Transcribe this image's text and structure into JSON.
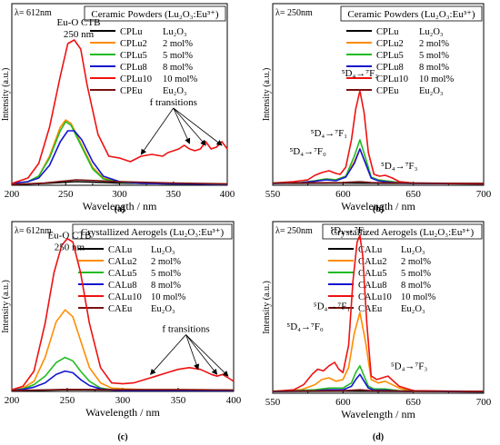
{
  "chart_data": [
    {
      "panel_label": "(a)",
      "type": "line",
      "lambda_label": "λ= 612nm",
      "title": "Ceramic Powders (Lu₂O₃:Eu³⁺)",
      "xlabel": "Wavelength / nm",
      "ylabel": "Intensity (a.u.)",
      "xlim": [
        200,
        400
      ],
      "xticks": [
        200,
        250,
        300,
        350,
        400
      ],
      "ylim": [
        0,
        1
      ],
      "legend_position": "top-right",
      "annotations": [
        {
          "id": "ctb",
          "lines": [
            "Eu-O CTB",
            "250 nm"
          ],
          "x": 262,
          "y": 0.88
        },
        {
          "id": "f-transitions",
          "lines": [
            "f transitions"
          ],
          "x": 350,
          "y": 0.44,
          "arrow_targets": [
            [
              320,
              0.17
            ],
            [
              365,
              0.23
            ],
            [
              380,
              0.22
            ],
            [
              395,
              0.22
            ]
          ]
        }
      ],
      "series": [
        {
          "name": "CPLu",
          "extra": "Lu₂O₃",
          "color": "#000000",
          "x": [
            200,
            230,
            260,
            300,
            350,
            400
          ],
          "y": [
            0.004,
            0.01,
            0.02,
            0.012,
            0.008,
            0.006
          ]
        },
        {
          "name": "CPLu2",
          "extra": "2 mol%",
          "color": "#ff8c00",
          "x": [
            200,
            215,
            225,
            235,
            245,
            250,
            255,
            265,
            275,
            285,
            300,
            320,
            350,
            400
          ],
          "y": [
            0.01,
            0.02,
            0.05,
            0.16,
            0.32,
            0.36,
            0.34,
            0.22,
            0.1,
            0.04,
            0.02,
            0.01,
            0.008,
            0.005
          ]
        },
        {
          "name": "CPLu5",
          "extra": "5 mol%",
          "color": "#22bb22",
          "x": [
            200,
            215,
            225,
            235,
            245,
            250,
            255,
            265,
            275,
            285,
            300,
            320,
            350,
            400
          ],
          "y": [
            0.01,
            0.02,
            0.05,
            0.15,
            0.3,
            0.35,
            0.33,
            0.21,
            0.09,
            0.035,
            0.018,
            0.01,
            0.008,
            0.005
          ]
        },
        {
          "name": "CPLu8",
          "extra": "8 mol%",
          "color": "#1515d0",
          "x": [
            200,
            215,
            225,
            235,
            245,
            252,
            258,
            265,
            275,
            285,
            300,
            320,
            350,
            400
          ],
          "y": [
            0.01,
            0.02,
            0.04,
            0.11,
            0.24,
            0.3,
            0.3,
            0.25,
            0.13,
            0.05,
            0.02,
            0.01,
            0.008,
            0.005
          ]
        },
        {
          "name": "CPLu10",
          "extra": "10 mol%",
          "color": "#ee1111",
          "x": [
            200,
            215,
            225,
            235,
            245,
            252,
            258,
            264,
            270,
            280,
            290,
            300,
            305,
            310,
            320,
            330,
            340,
            345,
            350,
            355,
            360,
            365,
            370,
            375,
            380,
            385,
            390,
            395,
            400
          ],
          "y": [
            0.01,
            0.04,
            0.12,
            0.32,
            0.6,
            0.78,
            0.8,
            0.75,
            0.55,
            0.28,
            0.16,
            0.15,
            0.14,
            0.13,
            0.16,
            0.17,
            0.16,
            0.18,
            0.19,
            0.2,
            0.22,
            0.2,
            0.19,
            0.2,
            0.24,
            0.2,
            0.21,
            0.24,
            0.2
          ]
        },
        {
          "name": "CPEu",
          "extra": "Eu₂O₃",
          "color": "#7a1010",
          "x": [
            200,
            230,
            260,
            300,
            350,
            400
          ],
          "y": [
            0.004,
            0.012,
            0.03,
            0.02,
            0.012,
            0.008
          ]
        }
      ]
    },
    {
      "panel_label": "(b)",
      "type": "line",
      "lambda_label": "λ= 250nm",
      "title": "Ceramic Powders (Lu₂O₃:Eu³⁺)",
      "xlabel": "Wavelength / nm",
      "ylabel": "Intensity (a.u.)",
      "xlim": [
        550,
        700
      ],
      "xticks": [
        550,
        600,
        650,
        700
      ],
      "ylim": [
        0,
        1
      ],
      "legend_position": "top-right",
      "annotations": [
        {
          "id": "5d4-7f2",
          "lines": [
            "⁵D₄→⁷F₂"
          ],
          "x": 612,
          "y": 0.6
        },
        {
          "id": "5d4-7f1",
          "lines": [
            "⁵D₄→⁷F₁"
          ],
          "x": 590,
          "y": 0.27
        },
        {
          "id": "5d4-7f0",
          "lines": [
            "⁵D₄→⁷F₀"
          ],
          "x": 575,
          "y": 0.17
        },
        {
          "id": "5d4-7f3",
          "lines": [
            "⁵D₄→⁷F₃"
          ],
          "x": 640,
          "y": 0.09
        }
      ],
      "series": [
        {
          "name": "CPLu",
          "extra": "Lu₂O₃",
          "color": "#000000",
          "x": [
            550,
            600,
            650,
            700
          ],
          "y": [
            0.01,
            0.012,
            0.01,
            0.01
          ]
        },
        {
          "name": "CPLu2",
          "extra": "2 mol%",
          "color": "#ff8c00",
          "x": [
            550,
            570,
            580,
            588,
            595,
            602,
            608,
            612,
            616,
            620,
            625,
            630,
            640,
            650,
            700
          ],
          "y": [
            0.01,
            0.015,
            0.025,
            0.035,
            0.03,
            0.05,
            0.13,
            0.2,
            0.12,
            0.04,
            0.03,
            0.025,
            0.015,
            0.01,
            0.008
          ]
        },
        {
          "name": "CPLu5",
          "extra": "5 mol%",
          "color": "#22bb22",
          "x": [
            550,
            570,
            580,
            588,
            595,
            602,
            608,
            612,
            616,
            620,
            625,
            630,
            640,
            650,
            700
          ],
          "y": [
            0.01,
            0.015,
            0.025,
            0.035,
            0.03,
            0.05,
            0.16,
            0.25,
            0.15,
            0.045,
            0.03,
            0.025,
            0.015,
            0.01,
            0.008
          ]
        },
        {
          "name": "CPLu8",
          "extra": "8 mol%",
          "color": "#1515d0",
          "x": [
            550,
            570,
            580,
            588,
            595,
            602,
            608,
            612,
            616,
            620,
            625,
            630,
            640,
            650,
            700
          ],
          "y": [
            0.01,
            0.015,
            0.022,
            0.03,
            0.025,
            0.045,
            0.12,
            0.2,
            0.12,
            0.04,
            0.025,
            0.02,
            0.012,
            0.01,
            0.008
          ]
        },
        {
          "name": "CPLu10",
          "extra": "10 mol%",
          "color": "#ee1111",
          "x": [
            550,
            565,
            575,
            580,
            585,
            590,
            595,
            598,
            602,
            606,
            609,
            612,
            615,
            618,
            622,
            626,
            630,
            635,
            640,
            650,
            700
          ],
          "y": [
            0.012,
            0.02,
            0.03,
            0.055,
            0.07,
            0.08,
            0.065,
            0.06,
            0.1,
            0.25,
            0.42,
            0.52,
            0.4,
            0.18,
            0.06,
            0.05,
            0.055,
            0.04,
            0.02,
            0.012,
            0.008
          ]
        },
        {
          "name": "CPEu",
          "extra": "Eu₂O₃",
          "color": "#7a1010",
          "x": [
            550,
            600,
            612,
            620,
            650,
            700
          ],
          "y": [
            0.012,
            0.015,
            0.02,
            0.015,
            0.012,
            0.01
          ]
        }
      ]
    },
    {
      "panel_label": "(c)",
      "type": "line",
      "lambda_label": "λ= 612nm",
      "title": "Crystallized Aerogels (Lu₂O₃:Eu³⁺)",
      "xlabel": "Wavelength / nm",
      "ylabel": "Intensity (a.u.)",
      "xlim": [
        200,
        400
      ],
      "xticks": [
        200,
        250,
        300,
        350,
        400
      ],
      "ylim": [
        0,
        1
      ],
      "legend_position": "top-right",
      "annotations": [
        {
          "id": "ctb",
          "lines": [
            "Eu-O CTB",
            "250 nm"
          ],
          "x": 252,
          "y": 0.9
        },
        {
          "id": "f-transitions",
          "lines": [
            "f transitions"
          ],
          "x": 357,
          "y": 0.35,
          "arrow_targets": [
            [
              325,
              0.1
            ],
            [
              368,
              0.13
            ],
            [
              385,
              0.1
            ],
            [
              395,
              0.09
            ]
          ]
        }
      ],
      "series": [
        {
          "name": "CALu",
          "extra": "Lu₂O₃",
          "color": "#000000",
          "x": [
            200,
            250,
            300,
            350,
            400
          ],
          "y": [
            0.004,
            0.01,
            0.008,
            0.008,
            0.006
          ]
        },
        {
          "name": "CALu2",
          "extra": "2 mol%",
          "color": "#ff8c00",
          "x": [
            200,
            210,
            220,
            230,
            240,
            248,
            255,
            262,
            270,
            280,
            290,
            300,
            320,
            350,
            400
          ],
          "y": [
            0.01,
            0.02,
            0.06,
            0.2,
            0.41,
            0.48,
            0.44,
            0.3,
            0.14,
            0.05,
            0.02,
            0.015,
            0.01,
            0.01,
            0.008
          ]
        },
        {
          "name": "CALu5",
          "extra": "5 mol%",
          "color": "#22bb22",
          "x": [
            200,
            210,
            220,
            230,
            240,
            248,
            255,
            262,
            270,
            280,
            290,
            300,
            350,
            400
          ],
          "y": [
            0.008,
            0.015,
            0.04,
            0.09,
            0.17,
            0.2,
            0.18,
            0.12,
            0.06,
            0.02,
            0.01,
            0.008,
            0.008,
            0.006
          ]
        },
        {
          "name": "CALu8",
          "extra": "8 mol%",
          "color": "#1515d0",
          "x": [
            200,
            210,
            220,
            230,
            240,
            248,
            255,
            262,
            270,
            280,
            290,
            300,
            350,
            400
          ],
          "y": [
            0.006,
            0.012,
            0.025,
            0.05,
            0.1,
            0.12,
            0.11,
            0.07,
            0.035,
            0.015,
            0.008,
            0.006,
            0.006,
            0.005
          ]
        },
        {
          "name": "CALu10",
          "extra": "10 mol%",
          "color": "#ee1111",
          "x": [
            200,
            210,
            220,
            230,
            238,
            245,
            250,
            255,
            262,
            270,
            280,
            290,
            300,
            310,
            320,
            330,
            340,
            350,
            360,
            370,
            380,
            385,
            390,
            395,
            400
          ],
          "y": [
            0.01,
            0.03,
            0.12,
            0.4,
            0.7,
            0.86,
            0.9,
            0.88,
            0.7,
            0.4,
            0.14,
            0.05,
            0.045,
            0.05,
            0.07,
            0.09,
            0.11,
            0.13,
            0.14,
            0.13,
            0.1,
            0.09,
            0.1,
            0.08,
            0.06
          ]
        },
        {
          "name": "CAEu",
          "extra": "Eu₂O₃",
          "color": "#7a1010",
          "x": [
            200,
            250,
            300,
            350,
            400
          ],
          "y": [
            0.005,
            0.012,
            0.01,
            0.01,
            0.008
          ]
        }
      ]
    },
    {
      "panel_label": "(d)",
      "type": "line",
      "lambda_label": "λ= 250nm",
      "title": "Crystallized Aerogels (Lu₂O₃:Eu³⁺)",
      "xlabel": "Wavelength / nm",
      "ylabel": "Intensity (a.u.)",
      "xlim": [
        550,
        700
      ],
      "xticks": [
        550,
        600,
        650,
        700
      ],
      "ylim": [
        0,
        1
      ],
      "legend_position": "top-right",
      "annotations": [
        {
          "id": "5d4-7f2",
          "lines": [
            "⁵D₄→⁷F₂"
          ],
          "x": 604,
          "y": 0.93
        },
        {
          "id": "5d4-7f1",
          "lines": [
            "⁵D₄→⁷F₁"
          ],
          "x": 592,
          "y": 0.49
        },
        {
          "id": "5d4-7f0",
          "lines": [
            "⁵D₄→⁷F₀"
          ],
          "x": 573,
          "y": 0.37
        },
        {
          "id": "5d4-7f3",
          "lines": [
            "⁵D₄→⁷F₃"
          ],
          "x": 647,
          "y": 0.14
        }
      ],
      "series": [
        {
          "name": "CALu",
          "extra": "Lu₂O₃",
          "color": "#000000",
          "x": [
            550,
            600,
            650,
            700
          ],
          "y": [
            0.01,
            0.012,
            0.01,
            0.01
          ]
        },
        {
          "name": "CALu2",
          "extra": "2 mol%",
          "color": "#ff8c00",
          "x": [
            550,
            570,
            580,
            585,
            590,
            595,
            600,
            604,
            608,
            612,
            616,
            620,
            625,
            630,
            640,
            650,
            700
          ],
          "y": [
            0.01,
            0.02,
            0.05,
            0.08,
            0.09,
            0.07,
            0.08,
            0.15,
            0.35,
            0.47,
            0.3,
            0.08,
            0.06,
            0.07,
            0.03,
            0.01,
            0.008
          ]
        },
        {
          "name": "CALu5",
          "extra": "5 mol%",
          "color": "#22bb22",
          "x": [
            550,
            580,
            590,
            600,
            606,
            609,
            612,
            615,
            618,
            622,
            630,
            640,
            700
          ],
          "y": [
            0.01,
            0.02,
            0.03,
            0.03,
            0.06,
            0.12,
            0.16,
            0.1,
            0.04,
            0.025,
            0.025,
            0.015,
            0.008
          ]
        },
        {
          "name": "CALu8",
          "extra": "8 mol%",
          "color": "#1515d0",
          "x": [
            550,
            580,
            590,
            600,
            606,
            609,
            612,
            615,
            618,
            622,
            630,
            640,
            700
          ],
          "y": [
            0.01,
            0.015,
            0.02,
            0.02,
            0.04,
            0.08,
            0.11,
            0.07,
            0.03,
            0.018,
            0.018,
            0.012,
            0.008
          ]
        },
        {
          "name": "CALu10",
          "extra": "10 mol%",
          "color": "#ee1111",
          "x": [
            550,
            565,
            572,
            578,
            582,
            586,
            590,
            594,
            597,
            600,
            604,
            607,
            610,
            612,
            614,
            617,
            620,
            624,
            628,
            632,
            636,
            640,
            650,
            700
          ],
          "y": [
            0.01,
            0.02,
            0.05,
            0.11,
            0.14,
            0.13,
            0.16,
            0.18,
            0.14,
            0.12,
            0.28,
            0.65,
            0.88,
            0.92,
            0.8,
            0.4,
            0.1,
            0.08,
            0.09,
            0.1,
            0.07,
            0.04,
            0.015,
            0.01
          ]
        },
        {
          "name": "CAEu",
          "extra": "Eu₂O₃",
          "color": "#7a1010",
          "x": [
            550,
            600,
            612,
            620,
            650,
            700
          ],
          "y": [
            0.012,
            0.015,
            0.02,
            0.015,
            0.012,
            0.01
          ]
        }
      ]
    }
  ]
}
